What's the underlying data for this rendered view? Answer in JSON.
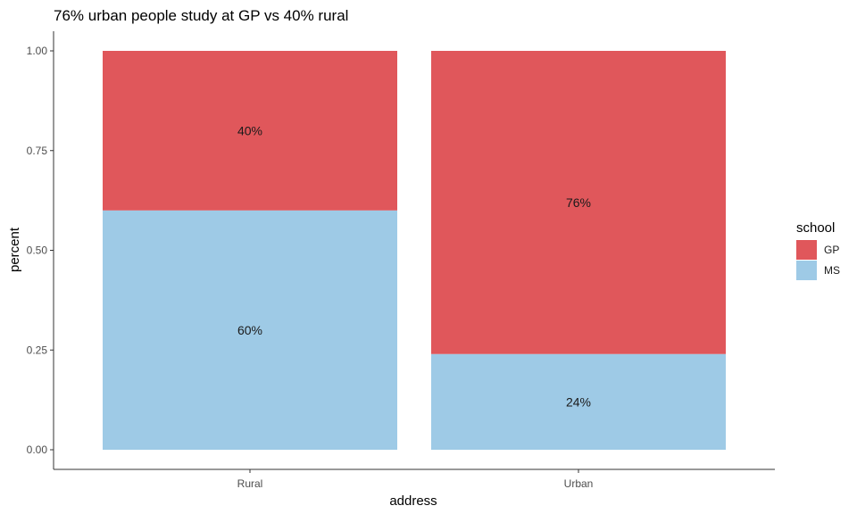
{
  "chart_data": {
    "type": "bar",
    "stacked": true,
    "title": "76% urban people study at GP vs 40% rural",
    "xlabel": "address",
    "ylabel": "percent",
    "categories": [
      "Rural",
      "Urban"
    ],
    "ylim": [
      0,
      1
    ],
    "yticks": [
      "0.00",
      "0.25",
      "0.50",
      "0.75",
      "1.00"
    ],
    "grid": false,
    "legend": {
      "title": "school",
      "placement": "right"
    },
    "series": [
      {
        "name": "MS",
        "values": [
          0.6,
          0.24
        ],
        "labels": [
          "60%",
          "24%"
        ],
        "color": "#9ecae6"
      },
      {
        "name": "GP",
        "values": [
          0.4,
          0.76
        ],
        "labels": [
          "40%",
          "76%"
        ],
        "color": "#e0575b"
      }
    ]
  },
  "legend_items": [
    {
      "name": "GP",
      "color": "#e0575b"
    },
    {
      "name": "MS",
      "color": "#9ecae6"
    }
  ]
}
